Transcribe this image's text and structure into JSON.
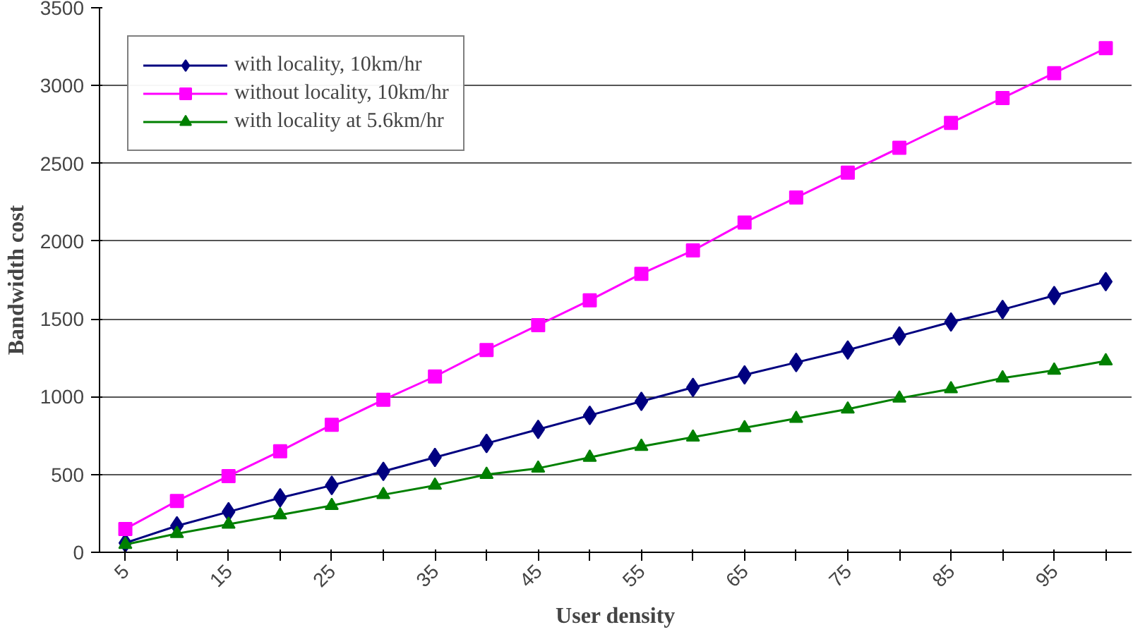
{
  "chart_data": {
    "type": "line",
    "xlabel": "User density",
    "ylabel": "Bandwidth cost",
    "categories": [
      "5",
      null,
      "15",
      null,
      "25",
      null,
      "35",
      null,
      "45",
      null,
      "55",
      null,
      "65",
      null,
      "75",
      null,
      "85",
      null,
      "95",
      null
    ],
    "series": [
      {
        "name": "with locality, 10km/hr",
        "color": "#000080",
        "marker": "diamond",
        "values": [
          60,
          170,
          260,
          350,
          430,
          520,
          610,
          700,
          790,
          880,
          970,
          1060,
          1140,
          1220,
          1300,
          1390,
          1480,
          1560,
          1650,
          1740
        ]
      },
      {
        "name": "without locality, 10km/hr",
        "color": "#ff00ff",
        "marker": "square",
        "values": [
          150,
          330,
          490,
          650,
          820,
          980,
          1130,
          1300,
          1460,
          1620,
          1790,
          1940,
          2120,
          2280,
          2440,
          2600,
          2760,
          2920,
          3080,
          3240
        ]
      },
      {
        "name": "with locality at 5.6km/hr",
        "color": "#008000",
        "marker": "triangle",
        "values": [
          50,
          120,
          180,
          240,
          300,
          370,
          430,
          500,
          540,
          610,
          680,
          740,
          800,
          860,
          920,
          990,
          1050,
          1120,
          1170,
          1230
        ]
      }
    ],
    "ylim": [
      0,
      3500
    ],
    "yticks": [
      0,
      500,
      1000,
      1500,
      2000,
      2500,
      3000,
      3500
    ],
    "grid": "y",
    "legend": "top left"
  }
}
